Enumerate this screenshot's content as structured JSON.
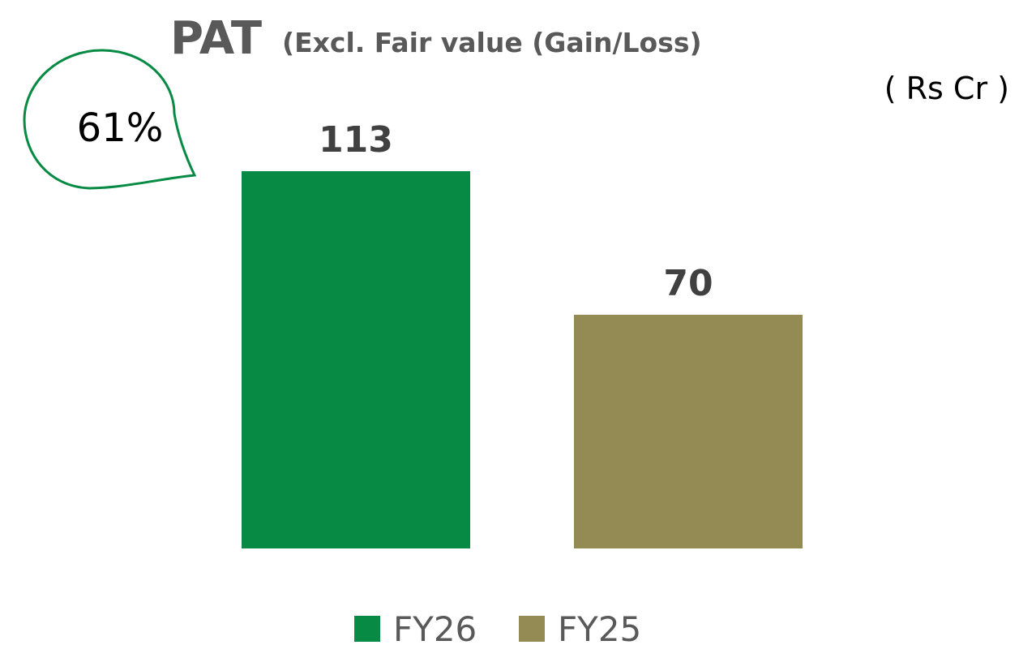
{
  "chart_data": {
    "type": "bar",
    "title": "PAT",
    "subtitle": "(Excl. Fair value (Gain/Loss)",
    "unit_label": "( Rs Cr )",
    "annotations": [
      "61%"
    ],
    "series": [
      {
        "name": "FY26",
        "color": "#068a44",
        "values": [
          113
        ]
      },
      {
        "name": "FY25",
        "color": "#948a54",
        "values": [
          70
        ]
      }
    ],
    "legend": "bottom"
  }
}
